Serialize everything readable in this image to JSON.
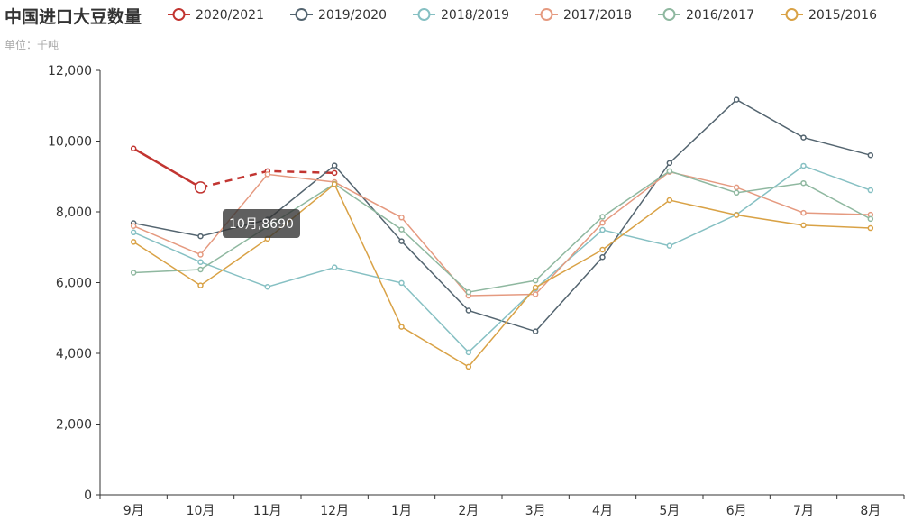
{
  "chart_data": {
    "type": "line",
    "title": "中国进口大豆数量",
    "subtitle": "单位：千吨",
    "categories": [
      "9月",
      "10月",
      "11月",
      "12月",
      "1月",
      "2月",
      "3月",
      "4月",
      "5月",
      "6月",
      "7月",
      "8月"
    ],
    "ylim": [
      0,
      12000
    ],
    "yticks": [
      0,
      2000,
      4000,
      6000,
      8000,
      10000,
      12000
    ],
    "ytick_labels": [
      "0",
      "2,000",
      "4,000",
      "6,000",
      "8,000",
      "10,000",
      "12,000"
    ],
    "legend_position": "top",
    "grid": false,
    "series": [
      {
        "name": "2020/2021",
        "color": "#c23531",
        "values": [
          9790,
          8690,
          null,
          null,
          null,
          null,
          null,
          null,
          null,
          null,
          null,
          null
        ],
        "projection_dashed": [
          null,
          8690,
          9150,
          9100,
          null,
          null,
          null,
          null,
          null,
          null,
          null,
          null
        ]
      },
      {
        "name": "2019/2020",
        "color": "#546570",
        "values": [
          7680,
          7310,
          7780,
          9310,
          7170,
          5210,
          4620,
          6720,
          9380,
          11170,
          10100,
          9600
        ]
      },
      {
        "name": "2018/2019",
        "color": "#86c0c3",
        "values": [
          7420,
          6580,
          5880,
          6430,
          5990,
          4030,
          5830,
          7490,
          7040,
          7920,
          9300,
          8610
        ]
      },
      {
        "name": "2017/2018",
        "color": "#e59a80",
        "values": [
          7600,
          6790,
          9060,
          8840,
          7840,
          5630,
          5670,
          7690,
          9130,
          8690,
          7970,
          7920
        ]
      },
      {
        "name": "2016/2017",
        "color": "#8fb8a0",
        "values": [
          6280,
          6370,
          7580,
          8790,
          7500,
          5730,
          6060,
          7860,
          9150,
          8540,
          8810,
          7800
        ]
      },
      {
        "name": "2015/2016",
        "color": "#d9a246",
        "values": [
          7150,
          5920,
          7240,
          8780,
          4750,
          3620,
          5860,
          6930,
          8330,
          7910,
          7620,
          7540
        ]
      }
    ],
    "highlight": {
      "series": "2020/2021",
      "category": "10月",
      "value": 8690
    },
    "tooltip": "10月,8690"
  }
}
